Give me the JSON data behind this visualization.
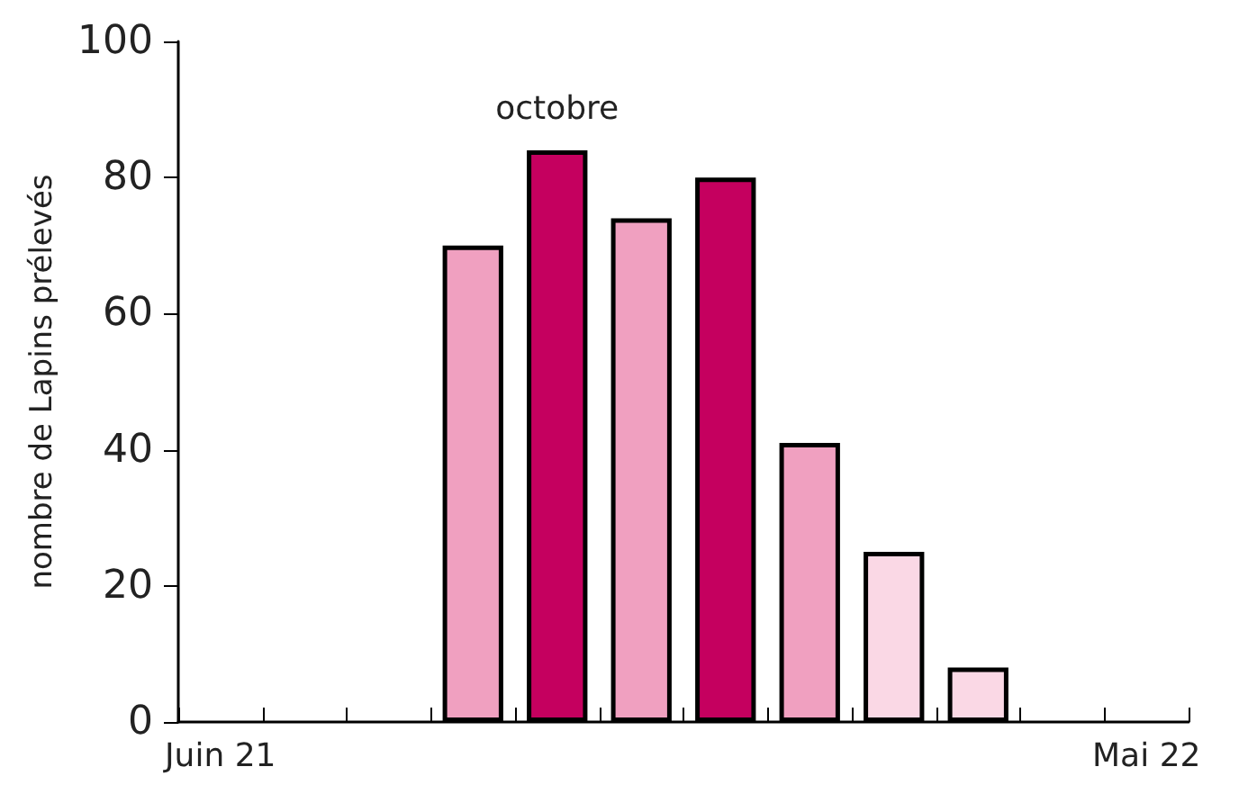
{
  "chart_data": {
    "type": "bar",
    "ylabel": "nombre de Lapins prélevés",
    "categories": [
      "Juin 21",
      null,
      null,
      null,
      null,
      null,
      null,
      null,
      null,
      null,
      null,
      "Mai 22"
    ],
    "values": [
      null,
      null,
      null,
      70,
      84,
      74,
      80,
      41,
      25,
      8,
      null,
      null
    ],
    "colors": [
      "#f0a0c0",
      "#f0a0c0",
      "#f0a0c0",
      "#f0a0c0",
      "#c5005f",
      "#f0a0c0",
      "#c5005f",
      "#f0a0c0",
      "#fad8e5",
      "#fad8e5",
      "#f0a0c0",
      "#f0a0c0"
    ],
    "ylim": [
      0,
      100
    ],
    "yticks": [
      0,
      20,
      40,
      60,
      80,
      100
    ],
    "grid": false,
    "annotations": [
      "octobre"
    ]
  }
}
